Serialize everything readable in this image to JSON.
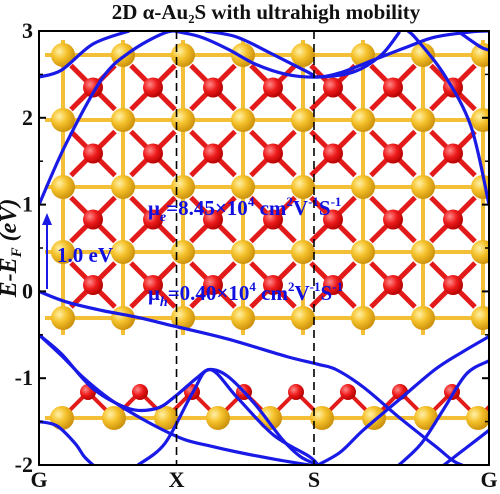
{
  "chart_data": {
    "type": "line",
    "title": "2D α-Au₂S with ultrahigh mobility",
    "ylabel": "E-E_F (eV)",
    "ylim": [
      -2,
      3
    ],
    "x_ticks": [
      "G",
      "X",
      "S",
      "G"
    ],
    "y_ticks": [
      "-2",
      "-1",
      "0",
      "1",
      "2",
      "3"
    ],
    "grid": false,
    "series_color": "#1a1ae6",
    "annotations": {
      "gap_label": "1.0 eV",
      "mu_e": {
        "sym": "μ",
        "sub": "e",
        "text": "=8.45×10",
        "exp": "4",
        "unit": " cm",
        "unit_exp": "2",
        "v": "V",
        "v_exp": "-1",
        "s": "S",
        "s_exp": "-1"
      },
      "mu_h": {
        "sym": "μ",
        "sub": "h",
        "text": "=0.40×10",
        "exp": "4",
        "unit": " cm",
        "unit_exp": "2",
        "v": "V",
        "v_exp": "-1",
        "s": "S",
        "s_exp": "-1"
      }
    },
    "bands": [
      {
        "name": "",
        "points": [
          [
            0,
            2.47
          ],
          [
            0.05,
            2.55
          ],
          [
            0.12,
            2.85
          ],
          [
            0.2,
            3.0
          ]
        ]
      },
      {
        "name": "",
        "points": [
          [
            0,
            1.0
          ],
          [
            0.06,
            1.7
          ],
          [
            0.14,
            2.45
          ],
          [
            0.2,
            2.75
          ],
          [
            0.28,
            2.98
          ],
          [
            0.33,
            3.0
          ]
        ]
      },
      {
        "name": "",
        "points": [
          [
            0.3,
            3.0
          ],
          [
            0.36,
            2.93
          ],
          [
            0.42,
            2.79
          ],
          [
            0.48,
            2.62
          ],
          [
            0.55,
            2.5
          ],
          [
            0.62,
            2.47
          ],
          [
            0.7,
            2.53
          ],
          [
            0.76,
            2.72
          ],
          [
            0.8,
            2.98
          ]
        ]
      },
      {
        "name": "",
        "points": [
          [
            0.37,
            3.0
          ],
          [
            0.44,
            2.93
          ],
          [
            0.52,
            2.73
          ],
          [
            0.6,
            2.52
          ],
          [
            0.62,
            2.47
          ],
          [
            0.67,
            2.52
          ],
          [
            0.75,
            2.68
          ],
          [
            0.82,
            2.82
          ],
          [
            0.88,
            2.93
          ],
          [
            0.96,
            2.99
          ],
          [
            1.0,
            3.0
          ]
        ]
      },
      {
        "name": "",
        "points": [
          [
            1.0,
            1.0
          ],
          [
            0.96,
            1.9
          ],
          [
            0.9,
            2.5
          ],
          [
            0.84,
            2.9
          ],
          [
            0.82,
            3.0
          ]
        ]
      },
      {
        "name": "",
        "points": [
          [
            0.93,
            3.0
          ],
          [
            0.98,
            2.82
          ],
          [
            1.0,
            2.78
          ]
        ]
      },
      {
        "name": "",
        "points": [
          [
            0,
            0.0
          ],
          [
            0.06,
            -0.12
          ],
          [
            0.14,
            -0.22
          ],
          [
            0.22,
            -0.3
          ],
          [
            0.3,
            -0.4
          ],
          [
            0.42,
            -0.55
          ],
          [
            0.55,
            -0.75
          ],
          [
            0.62,
            -0.84
          ],
          [
            0.66,
            -0.9
          ],
          [
            0.72,
            -1.1
          ],
          [
            0.8,
            -1.45
          ],
          [
            0.88,
            -1.78
          ],
          [
            0.92,
            -1.95
          ],
          [
            0.94,
            -2.0
          ]
        ]
      },
      {
        "name": "",
        "points": [
          [
            0,
            -0.5
          ],
          [
            0.05,
            -0.72
          ],
          [
            0.12,
            -1.12
          ],
          [
            0.2,
            -1.35
          ],
          [
            0.26,
            -1.35
          ],
          [
            0.3,
            -1.22
          ],
          [
            0.35,
            -1.0
          ],
          [
            0.38,
            -0.9
          ],
          [
            0.42,
            -0.98
          ],
          [
            0.48,
            -1.3
          ],
          [
            0.54,
            -1.7
          ],
          [
            0.58,
            -1.9
          ],
          [
            0.62,
            -2.0
          ]
        ]
      },
      {
        "name": "",
        "points": [
          [
            0,
            -0.5
          ],
          [
            0.05,
            -0.74
          ],
          [
            0.1,
            -1.0
          ],
          [
            0.16,
            -1.25
          ],
          [
            0.24,
            -1.5
          ],
          [
            0.32,
            -1.7
          ],
          [
            0.38,
            -1.78
          ],
          [
            0.44,
            -1.85
          ],
          [
            0.52,
            -1.93
          ],
          [
            0.6,
            -2.0
          ]
        ]
      },
      {
        "name": "",
        "points": [
          [
            0.22,
            -2.0
          ],
          [
            0.28,
            -1.75
          ],
          [
            0.34,
            -1.18
          ],
          [
            0.38,
            -0.9
          ],
          [
            0.44,
            -1.22
          ],
          [
            0.52,
            -1.65
          ],
          [
            0.6,
            -1.9
          ],
          [
            0.62,
            -2.0
          ]
        ]
      },
      {
        "name": "",
        "points": [
          [
            0.62,
            -2.0
          ],
          [
            0.67,
            -1.85
          ],
          [
            0.72,
            -1.6
          ],
          [
            0.8,
            -1.25
          ],
          [
            0.88,
            -0.9
          ],
          [
            0.94,
            -0.7
          ],
          [
            1.0,
            -0.52
          ]
        ]
      },
      {
        "name": "",
        "points": [
          [
            0.8,
            -2.0
          ],
          [
            0.85,
            -1.75
          ],
          [
            0.9,
            -1.35
          ],
          [
            0.95,
            -0.95
          ],
          [
            1.0,
            -0.8
          ]
        ]
      },
      {
        "name": "",
        "points": [
          [
            0,
            -1.5
          ],
          [
            0.04,
            -1.55
          ],
          [
            0.08,
            -1.75
          ],
          [
            0.1,
            -1.9
          ],
          [
            0.12,
            -2.0
          ]
        ]
      },
      {
        "name": "",
        "points": [
          [
            0.9,
            -2.0
          ],
          [
            0.95,
            -1.8
          ],
          [
            1.0,
            -1.6
          ]
        ]
      }
    ]
  }
}
